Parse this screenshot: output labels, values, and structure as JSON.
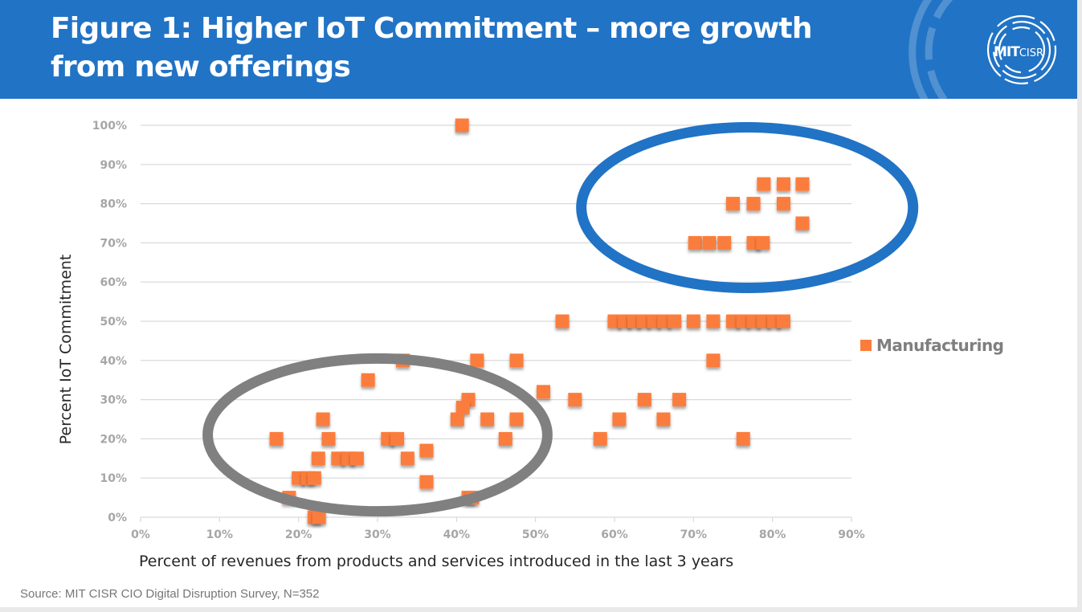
{
  "slide": {
    "title": "Figure 1: Higher IoT Commitment – more growth from new offerings",
    "logo": {
      "primary": "MIT",
      "secondary": "CISR",
      "icon": "mit-cisr-logo-icon"
    },
    "source": "Source: MIT CISR CIO Digital Disruption Survey, N=352",
    "colors": {
      "header": "#2173c5",
      "marker": "#fb7d3c",
      "ellipse_high": "#2173c5",
      "ellipse_low": "#808080"
    }
  },
  "chart_data": {
    "type": "scatter",
    "title": "Figure 1: Higher IoT Commitment – more growth from new offerings",
    "xlabel": "Percent  of revenues from products and services introduced in the last 3 years",
    "ylabel": "Percent IoT Commitment",
    "xlim": [
      0,
      90
    ],
    "ylim": [
      0,
      100
    ],
    "x_ticks": [
      0,
      10,
      20,
      30,
      40,
      50,
      60,
      70,
      80,
      90
    ],
    "y_ticks": [
      0,
      10,
      20,
      30,
      40,
      50,
      60,
      70,
      80,
      90,
      100
    ],
    "x_tick_labels": [
      "0%",
      "10%",
      "20%",
      "30%",
      "40%",
      "50%",
      "60%",
      "70%",
      "80%",
      "90%"
    ],
    "y_tick_labels": [
      "0%",
      "10%",
      "20%",
      "30%",
      "40%",
      "50%",
      "60%",
      "70%",
      "80%",
      "90%",
      "100%"
    ],
    "grid": "horizontal",
    "legend": {
      "position": "right",
      "entries": [
        "Manufacturing"
      ]
    },
    "series": [
      {
        "name": "Manufacturing",
        "marker": "square",
        "points": [
          [
            40.7,
            100
          ],
          [
            75.0,
            80
          ],
          [
            77.6,
            80
          ],
          [
            81.4,
            80
          ],
          [
            78.9,
            85
          ],
          [
            81.4,
            85
          ],
          [
            83.8,
            85
          ],
          [
            83.8,
            75
          ],
          [
            70.2,
            70
          ],
          [
            72.0,
            70
          ],
          [
            73.9,
            70
          ],
          [
            77.6,
            70
          ],
          [
            78.8,
            70
          ],
          [
            53.4,
            50
          ],
          [
            60.0,
            50
          ],
          [
            61.3,
            50
          ],
          [
            62.5,
            50
          ],
          [
            63.7,
            50
          ],
          [
            65.0,
            50
          ],
          [
            66.3,
            50
          ],
          [
            67.6,
            50
          ],
          [
            70.0,
            50
          ],
          [
            72.5,
            50
          ],
          [
            75.0,
            50
          ],
          [
            76.3,
            50
          ],
          [
            77.6,
            50
          ],
          [
            78.9,
            50
          ],
          [
            80.2,
            50
          ],
          [
            81.4,
            50
          ],
          [
            33.2,
            40
          ],
          [
            42.6,
            40
          ],
          [
            47.6,
            40
          ],
          [
            72.5,
            40
          ],
          [
            28.8,
            35
          ],
          [
            51.0,
            32
          ],
          [
            41.5,
            30
          ],
          [
            55.0,
            30
          ],
          [
            63.8,
            30
          ],
          [
            68.2,
            30
          ],
          [
            40.8,
            28
          ],
          [
            23.1,
            25
          ],
          [
            40.1,
            25
          ],
          [
            43.9,
            25
          ],
          [
            47.6,
            25
          ],
          [
            60.6,
            25
          ],
          [
            66.2,
            25
          ],
          [
            17.2,
            20
          ],
          [
            23.8,
            20
          ],
          [
            31.3,
            20
          ],
          [
            32.5,
            20
          ],
          [
            46.2,
            20
          ],
          [
            58.2,
            20
          ],
          [
            76.3,
            20
          ],
          [
            36.2,
            17
          ],
          [
            22.5,
            15
          ],
          [
            25.0,
            15
          ],
          [
            26.3,
            15
          ],
          [
            27.4,
            15
          ],
          [
            33.8,
            15
          ],
          [
            20.0,
            10
          ],
          [
            21.2,
            10
          ],
          [
            22.0,
            10
          ],
          [
            36.2,
            9
          ],
          [
            18.8,
            5
          ],
          [
            41.5,
            5
          ],
          [
            42.0,
            5
          ],
          [
            22.0,
            0
          ],
          [
            22.6,
            0
          ]
        ]
      }
    ],
    "annotations": [
      {
        "type": "ellipse",
        "color": "gray",
        "center": [
          30,
          21
        ],
        "radius_x": 21.5,
        "radius_y": 19.5,
        "meaning": "low IoT commitment cluster"
      },
      {
        "type": "ellipse",
        "color": "blue",
        "center": [
          76.8,
          79
        ],
        "radius_x": 21,
        "radius_y": 20.5,
        "meaning": "high IoT commitment cluster"
      }
    ]
  }
}
